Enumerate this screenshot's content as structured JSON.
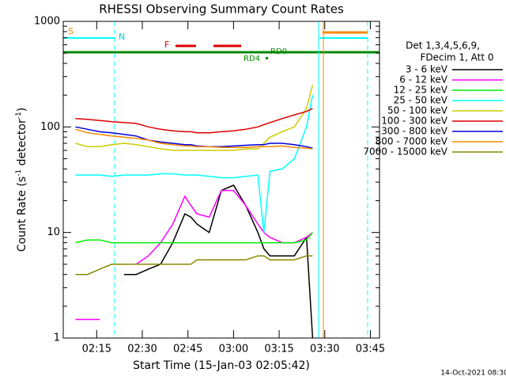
{
  "chart_data": {
    "type": "line",
    "title": "RHESSI Observing Summary Count Rates",
    "xlabel": "Start Time (15-Jan-03 02:05:42)",
    "ylabel": [
      "Count Rate (s",
      "-1",
      " detector",
      "-1",
      ")"
    ],
    "log_y": true,
    "xlim": [
      "02:04",
      "03:48"
    ],
    "xticks": [
      "02:15",
      "02:30",
      "02:45",
      "03:00",
      "03:15",
      "03:30",
      "03:45"
    ],
    "ylim": [
      1,
      1000
    ],
    "yticks": [
      1,
      10,
      100,
      1000
    ],
    "legend_title": [
      "Det 1,3,4,5,6,9,",
      "FDecim 1, Att 0"
    ],
    "annotations": [
      "S",
      "N",
      "F",
      "RD0",
      "RD4"
    ],
    "footer": "14-Oct-2021 08:30",
    "x": [
      "02:08",
      "02:12",
      "02:16",
      "02:20",
      "02:24",
      "02:28",
      "02:32",
      "02:36",
      "02:40",
      "02:44",
      "02:46",
      "02:48",
      "02:52",
      "02:56",
      "03:00",
      "03:04",
      "03:08",
      "03:10",
      "03:12",
      "03:16",
      "03:20",
      "03:24",
      "03:26"
    ],
    "series": [
      {
        "name": "3 - 6 keV",
        "color": "#000000",
        "values": [
          null,
          null,
          null,
          null,
          4,
          4,
          4.5,
          5,
          8,
          15,
          14,
          12,
          10,
          25,
          28,
          18,
          10,
          7,
          6,
          6,
          6,
          9,
          1
        ]
      },
      {
        "name": "6 - 12 keV",
        "color": "#ff00ff",
        "values": [
          1.5,
          1.5,
          1.5,
          null,
          5,
          5,
          6,
          8,
          12,
          22,
          18,
          15,
          14,
          25,
          25,
          18,
          12,
          10,
          9,
          8,
          8,
          9,
          10
        ]
      },
      {
        "name": "12 - 25 keV",
        "color": "#00ee00",
        "values": [
          8,
          8.5,
          8.5,
          8,
          8,
          8,
          8,
          8,
          8,
          8,
          8,
          8,
          8,
          8,
          8,
          8,
          8,
          8,
          8,
          8,
          8,
          8.5,
          10
        ]
      },
      {
        "name": "25 - 50 keV",
        "color": "#00ffff",
        "values": [
          35,
          35,
          35,
          34,
          35,
          35,
          35,
          36,
          36,
          35,
          35,
          35,
          34,
          33,
          33,
          34,
          35,
          10,
          38,
          40,
          50,
          100,
          200
        ]
      },
      {
        "name": "50 - 100 keV",
        "color": "#cccc00",
        "values": [
          70,
          65,
          65,
          68,
          70,
          68,
          65,
          62,
          60,
          60,
          60,
          60,
          60,
          60,
          60,
          62,
          62,
          70,
          80,
          90,
          100,
          150,
          250
        ]
      },
      {
        "name": "100 - 300 keV",
        "color": "#dd0000",
        "values": [
          120,
          118,
          115,
          112,
          110,
          108,
          100,
          95,
          92,
          90,
          90,
          88,
          88,
          90,
          92,
          95,
          100,
          105,
          110,
          120,
          130,
          140,
          150
        ]
      },
      {
        "name": "300 - 800 keV",
        "color": "#0000dd",
        "values": [
          100,
          95,
          90,
          88,
          85,
          82,
          75,
          72,
          70,
          68,
          68,
          66,
          65,
          65,
          66,
          67,
          68,
          68,
          70,
          70,
          68,
          65,
          63
        ]
      },
      {
        "name": "800 - 7000 keV",
        "color": "#ff8800",
        "values": [
          95,
          88,
          85,
          82,
          80,
          78,
          75,
          70,
          68,
          66,
          66,
          65,
          65,
          64,
          64,
          64,
          65,
          65,
          65,
          66,
          64,
          63,
          62
        ]
      },
      {
        "name": "7000 - 15000 keV",
        "color": "#888800",
        "values": [
          4,
          4,
          4.5,
          5,
          5,
          5,
          5,
          5,
          5,
          5,
          5,
          5.5,
          5.5,
          5.5,
          5.5,
          5.5,
          6,
          6,
          5.5,
          5.5,
          5.5,
          6,
          6
        ]
      }
    ]
  }
}
